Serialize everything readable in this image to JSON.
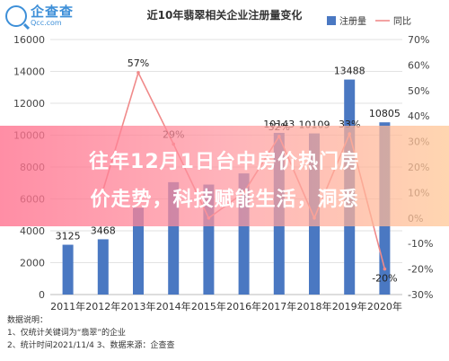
{
  "header": {
    "logo_cn": "企查查",
    "logo_en": "Qcc.com"
  },
  "chart_data": {
    "type": "bar",
    "title": "近10年翡翠相关企业注册量变化",
    "categories": [
      "2011年",
      "2012年",
      "2013年",
      "2014年",
      "2015年",
      "2016年",
      "2017年",
      "2018年",
      "2019年",
      "2020年"
    ],
    "series": [
      {
        "name": "注册量",
        "type": "bar",
        "axis": "left",
        "color": "#4a78c2",
        "values": [
          3125,
          3468,
          5450,
          7050,
          6900,
          7600,
          10143,
          10109,
          13488,
          10805
        ],
        "labels": [
          "3125",
          "3468",
          "",
          "",
          "",
          "",
          "10143",
          "10109",
          "13488",
          "10805"
        ]
      },
      {
        "name": "同比",
        "type": "line",
        "axis": "right",
        "color": "#f08a8a",
        "values": [
          null,
          11,
          57,
          29,
          0,
          10,
          32,
          0,
          33,
          -20
        ],
        "labels": [
          "",
          "",
          "57%",
          "29%",
          "",
          "",
          "32%",
          "",
          "33%",
          "-20%"
        ]
      }
    ],
    "y_left": {
      "ylim": [
        0,
        16000
      ],
      "ticks": [
        "0",
        "2000",
        "4000",
        "6000",
        "8000",
        "10000",
        "12000",
        "14000",
        "16000"
      ]
    },
    "y_right": {
      "ylim": [
        -30,
        70
      ],
      "ticks": [
        "-30%",
        "-20%",
        "-10%",
        "0%",
        "10%",
        "20%",
        "30%",
        "40%",
        "50%",
        "60%",
        "70%"
      ]
    },
    "legend": "top-right"
  },
  "notes": {
    "heading": "数据说明：",
    "line1": "1、仅统计关键词为“翡翠”的企业",
    "line2": "2、统计时间2021/11/4 3、数据来源：企查查"
  },
  "banner": {
    "line1": "往年12月1日台中房价热门房",
    "line2": "价走势，科技赋能生活，洞悉"
  }
}
